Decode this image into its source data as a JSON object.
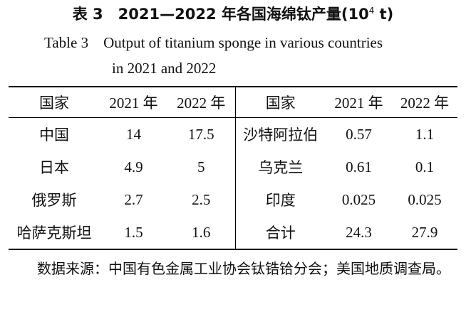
{
  "title_cn": {
    "label": "表 3",
    "text": "2021—2022 年各国海绵钛产量(10",
    "sup": "4",
    "unit": " t)"
  },
  "title_en": [
    "Table 3　Output of titanium sponge in various countries",
    "in 2021 and 2022"
  ],
  "table": {
    "header": [
      "国家",
      "2021 年",
      "2022 年",
      "国家",
      "2021 年",
      "2022 年"
    ],
    "rows": [
      [
        "中国",
        "14",
        "17.5",
        "沙特阿拉伯",
        "0.57",
        "1.1"
      ],
      [
        "日本",
        "4.9",
        "5",
        "乌克兰",
        "0.61",
        "0.1"
      ],
      [
        "俄罗斯",
        "2.7",
        "2.5",
        "印度",
        "0.025",
        "0.025"
      ],
      [
        "哈萨克斯坦",
        "1.5",
        "1.6",
        "合计",
        "24.3",
        "27.9"
      ]
    ]
  },
  "note": "数据来源：中国有色金属工业协会钛锆铪分会；美国地质调查局。"
}
